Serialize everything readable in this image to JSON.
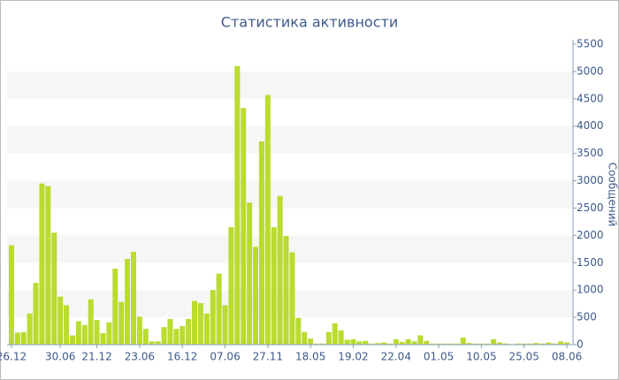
{
  "chart_data": {
    "type": "bar",
    "title": "Статистика активности",
    "y_label": "Сообщений",
    "categories": [
      "26.12",
      null,
      null,
      null,
      null,
      null,
      null,
      null,
      "30.06",
      null,
      null,
      null,
      null,
      null,
      "21.12",
      null,
      null,
      null,
      null,
      null,
      null,
      "23.06",
      null,
      null,
      null,
      null,
      null,
      null,
      "16.12",
      null,
      null,
      null,
      null,
      null,
      null,
      "07.06",
      null,
      null,
      null,
      null,
      null,
      null,
      "27.11",
      null,
      null,
      null,
      null,
      null,
      null,
      "18.05",
      null,
      null,
      null,
      null,
      null,
      null,
      "19.02",
      null,
      null,
      null,
      null,
      null,
      null,
      "22.04",
      null,
      null,
      null,
      null,
      null,
      null,
      "01.05",
      null,
      null,
      null,
      null,
      null,
      null,
      "10.05",
      null,
      null,
      null,
      null,
      null,
      null,
      "25.05",
      null,
      null,
      null,
      null,
      null,
      null,
      "08.06"
    ],
    "values": [
      1820,
      220,
      230,
      570,
      1130,
      2950,
      2900,
      2050,
      880,
      720,
      170,
      430,
      360,
      830,
      450,
      210,
      410,
      1390,
      780,
      1570,
      1700,
      510,
      290,
      60,
      60,
      320,
      470,
      290,
      340,
      470,
      800,
      760,
      570,
      1000,
      1300,
      720,
      2150,
      5100,
      4330,
      2600,
      1790,
      3720,
      4570,
      2150,
      2720,
      1990,
      1690,
      490,
      230,
      110,
      20,
      20,
      230,
      390,
      260,
      90,
      100,
      60,
      70,
      20,
      30,
      40,
      20,
      100,
      50,
      100,
      60,
      170,
      70,
      20,
      20,
      20,
      20,
      20,
      130,
      30,
      20,
      20,
      20,
      100,
      40,
      20,
      10,
      20,
      20,
      20,
      30,
      20,
      40,
      20,
      60,
      40
    ],
    "color": "#b9dc2e",
    "ylim": [
      0,
      5500
    ],
    "yticks": [
      0,
      500,
      1000,
      1500,
      2000,
      2500,
      3000,
      3500,
      4000,
      4500,
      5000,
      5500
    ],
    "grid": true
  }
}
